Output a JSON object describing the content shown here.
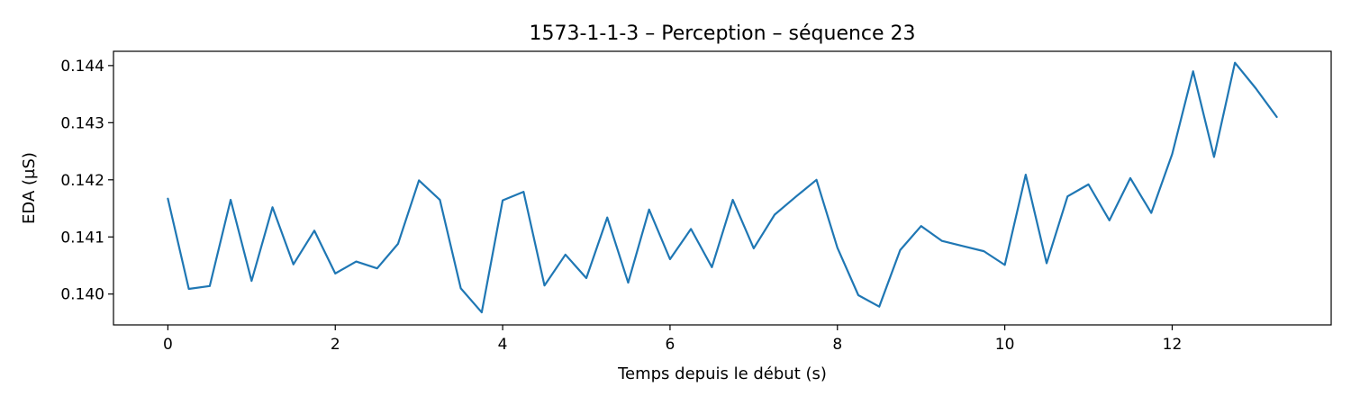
{
  "chart_data": {
    "type": "line",
    "title": "1573-1-1-3 – Perception – séquence 23",
    "xlabel": "Temps depuis le début (s)",
    "ylabel": "EDA (µS)",
    "xlim": [
      -0.65,
      13.9
    ],
    "ylim": [
      0.13946,
      0.14425
    ],
    "xticks": [
      0,
      2,
      4,
      6,
      8,
      10,
      12
    ],
    "xtick_labels": [
      "0",
      "2",
      "4",
      "6",
      "8",
      "10",
      "12"
    ],
    "yticks": [
      0.14,
      0.141,
      0.142,
      0.143,
      0.144
    ],
    "ytick_labels": [
      "0.140",
      "0.141",
      "0.142",
      "0.143",
      "0.144"
    ],
    "grid": false,
    "line_color": "#1f77b4",
    "series": [
      {
        "x": [
          0,
          0.25,
          0.5,
          0.75,
          1,
          1.25,
          1.5,
          1.75,
          2,
          2.25,
          2.5,
          2.75,
          3,
          3.25,
          3.5,
          3.75,
          4,
          4.25,
          4.5,
          4.75,
          5,
          5.25,
          5.5,
          5.75,
          6,
          6.25,
          6.5,
          6.75,
          7,
          7.25,
          7.5,
          7.75,
          8,
          8.25,
          8.5,
          8.75,
          9,
          9.25,
          9.5,
          9.75,
          10,
          10.25,
          10.5,
          10.75,
          11,
          11.25,
          11.5,
          11.75,
          12,
          12.25,
          12.5,
          12.75,
          13,
          13.25
        ],
        "y": [
          0.14167,
          0.14009,
          0.14014,
          0.14165,
          0.14023,
          0.14152,
          0.14052,
          0.14111,
          0.14036,
          0.14057,
          0.14045,
          0.14088,
          0.14199,
          0.14165,
          0.1401,
          0.13968,
          0.14164,
          0.14179,
          0.14015,
          0.14069,
          0.14028,
          0.14134,
          0.1402,
          0.14148,
          0.14061,
          0.14114,
          0.14047,
          0.14165,
          0.1408,
          0.14139,
          0.1417,
          0.142,
          0.14081,
          0.13998,
          0.13978,
          0.14077,
          0.14119,
          0.14093,
          0.14084,
          0.14075,
          0.14051,
          0.14209,
          0.14054,
          0.14171,
          0.14192,
          0.14129,
          0.14203,
          0.14142,
          0.14245,
          0.1439,
          0.1424,
          0.14405,
          0.1436,
          0.1431
        ]
      }
    ]
  }
}
